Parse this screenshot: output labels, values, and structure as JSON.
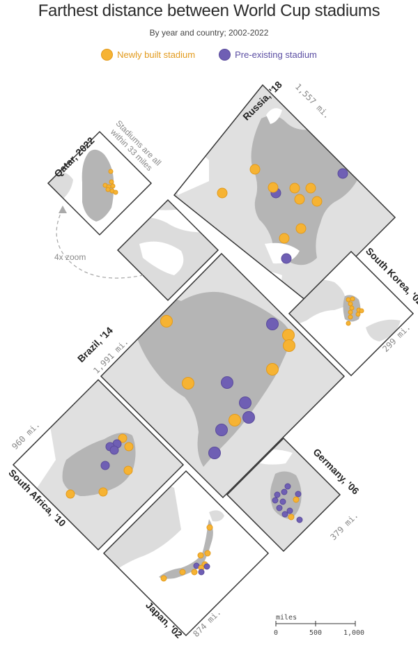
{
  "title": "Farthest distance between World Cup stadiums",
  "subtitle": "By year and country; 2002-2022",
  "legend": {
    "new": {
      "label": "Newly built stadium",
      "color": "#f6b333"
    },
    "pre": {
      "label": "Pre-existing stadium",
      "color": "#6f5fb4"
    }
  },
  "panels": {
    "qatar": {
      "label": "Qatar, 2022",
      "note_line1": "Stadiums are all",
      "note_line2": "within 33 miles"
    },
    "russia": {
      "label": "Russia, '18",
      "distance": "1,557 mi."
    },
    "southkorea": {
      "label": "South Korea, '02",
      "distance": "299 mi."
    },
    "brazil": {
      "label": "Brazil, '14",
      "distance": "1,991 mi."
    },
    "southafrica": {
      "label": "South Africa, '10",
      "distance": "960 mi."
    },
    "germany": {
      "label": "Germany, '06",
      "distance": "379 mi."
    },
    "japan": {
      "label": "Japan, '02",
      "distance": "874 mi."
    }
  },
  "zoom_label": "4x zoom",
  "scale": {
    "unit": "miles",
    "ticks": [
      "0",
      "500",
      "1,000"
    ]
  }
}
